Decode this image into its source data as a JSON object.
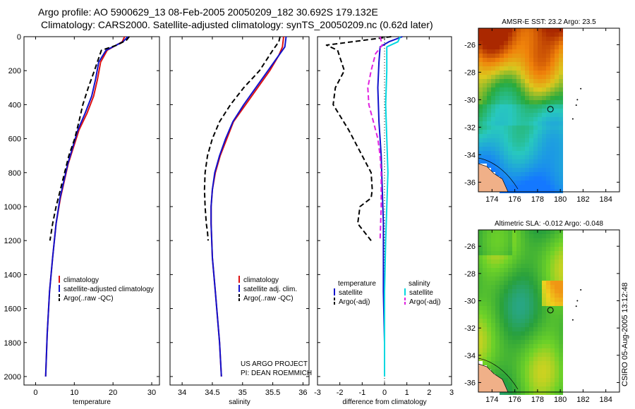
{
  "header": {
    "line1": "Argo profile: AO 5900629_13 08-Feb-2005 20050209_182 30.692S 179.132E",
    "line2": "Climatology: CARS2000. Satellite-adjusted climatology: synTS_20050209.nc (0.62d later)"
  },
  "side_label": "CSIRO 05-Aug-2005 13:12:48",
  "colors": {
    "climatology": "#dd1111",
    "satellite": "#1111cc",
    "argo": "#000000",
    "sal_sat": "#00d8e0",
    "sal_argo": "#e020e0"
  },
  "chart_data": [
    {
      "type": "line",
      "xlabel": "temperature",
      "xlim": [
        -3,
        32
      ],
      "ylim": [
        0,
        2050
      ],
      "xticks": [
        0,
        10,
        20,
        30
      ],
      "yticks": [
        0,
        200,
        400,
        600,
        800,
        1000,
        1200,
        1400,
        1600,
        1800,
        2000
      ],
      "legend": [
        "climatology",
        "satellite-adjusted climatology",
        "Argo(..raw -QC)"
      ],
      "series": [
        {
          "name": "climatology",
          "color": "#dd1111",
          "dash": "",
          "x": [
            23.0,
            22.4,
            18.5,
            16.8,
            16.0,
            15.0,
            13.3,
            11.2,
            9.8,
            8.4,
            7.4,
            6.4,
            5.3,
            4.4,
            3.6,
            3.0,
            2.6
          ],
          "y": [
            0,
            30,
            80,
            150,
            250,
            350,
            450,
            550,
            650,
            750,
            850,
            950,
            1100,
            1300,
            1500,
            1750,
            2000
          ]
        },
        {
          "name": "satellite",
          "color": "#1111cc",
          "dash": "",
          "x": [
            23.8,
            22.6,
            18.2,
            16.3,
            15.5,
            14.5,
            12.8,
            10.9,
            9.6,
            8.3,
            7.3,
            6.3,
            5.3,
            4.4,
            3.6,
            3.0,
            2.6
          ],
          "y": [
            0,
            30,
            80,
            150,
            250,
            350,
            450,
            550,
            650,
            750,
            850,
            950,
            1100,
            1300,
            1500,
            1750,
            2000
          ]
        },
        {
          "name": "argo",
          "color": "#000000",
          "dash": "7,4",
          "x": [
            24.2,
            23.5,
            21.0,
            17.0,
            15.2,
            13.6,
            12.2,
            11.2,
            10.1,
            8.6,
            7.5,
            6.4,
            5.3,
            4.4,
            3.7
          ],
          "y": [
            0,
            20,
            50,
            80,
            200,
            300,
            400,
            500,
            600,
            700,
            800,
            900,
            1000,
            1100,
            1200
          ]
        }
      ]
    },
    {
      "type": "line",
      "xlabel": "salinity",
      "xlim": [
        33.8,
        36.1
      ],
      "ylim": [
        0,
        2050
      ],
      "xticks": [
        34,
        34.5,
        35,
        35.5,
        36
      ],
      "legend": [
        "climatology",
        "satellite adj. clim.",
        "Argo(..raw -QC)"
      ],
      "annotation": [
        "US ARGO PROJECT",
        "PI: DEAN ROEMMICH"
      ],
      "series": [
        {
          "name": "climatology",
          "color": "#dd1111",
          "dash": "",
          "x": [
            35.68,
            35.66,
            35.6,
            35.45,
            35.25,
            35.05,
            34.85,
            34.74,
            34.63,
            34.55,
            34.5,
            34.48,
            34.48,
            34.5,
            34.55,
            34.62,
            34.65
          ],
          "y": [
            0,
            60,
            110,
            200,
            300,
            400,
            500,
            600,
            700,
            800,
            900,
            1000,
            1100,
            1300,
            1500,
            1800,
            2000
          ]
        },
        {
          "name": "satellite",
          "color": "#1111cc",
          "dash": "",
          "x": [
            35.72,
            35.7,
            35.6,
            35.42,
            35.22,
            35.02,
            34.84,
            34.72,
            34.62,
            34.54,
            34.5,
            34.48,
            34.48,
            34.5,
            34.55,
            34.62,
            34.65
          ],
          "y": [
            0,
            60,
            110,
            200,
            300,
            400,
            500,
            600,
            700,
            800,
            900,
            1000,
            1100,
            1300,
            1500,
            1800,
            2000
          ]
        },
        {
          "name": "argo",
          "color": "#000000",
          "dash": "7,4",
          "x": [
            35.62,
            35.6,
            35.5,
            35.28,
            35.02,
            34.8,
            34.62,
            34.5,
            34.42,
            34.38,
            34.37,
            34.38,
            34.4,
            34.42,
            34.43
          ],
          "y": [
            0,
            30,
            80,
            200,
            300,
            400,
            500,
            600,
            700,
            800,
            900,
            1000,
            1100,
            1150,
            1200
          ]
        }
      ]
    },
    {
      "type": "line",
      "xlabel": "difference from climatology",
      "xlim": [
        -3,
        3
      ],
      "ylim": [
        0,
        2050
      ],
      "xticks": [
        -3,
        -2,
        -1,
        0,
        1,
        2,
        3
      ],
      "legend": [
        [
          "temperature",
          "satellite",
          "Argo(-adj)"
        ],
        [
          "salinity",
          "satellite",
          "Argo(-adj)"
        ]
      ],
      "series": [
        {
          "name": "temperature satellite",
          "color": "#1111cc",
          "dash": "",
          "x": [
            0.8,
            0.2,
            -0.2,
            -0.25,
            -0.3,
            -0.25,
            -0.15,
            -0.1,
            -0.05,
            -0.05,
            -0.05,
            0,
            0
          ],
          "y": [
            0,
            30,
            60,
            150,
            300,
            500,
            700,
            900,
            1100,
            1300,
            1500,
            1800,
            2000
          ]
        },
        {
          "name": "temperature argo",
          "color": "#000000",
          "dash": "7,4",
          "x": [
            0.3,
            -2.6,
            -2.1,
            -1.8,
            -2.2,
            -2.3,
            -1.6,
            -1.0,
            -0.6,
            -0.55,
            -0.6,
            -1.1,
            -1.2,
            -0.6
          ],
          "y": [
            0,
            50,
            80,
            200,
            300,
            400,
            550,
            700,
            800,
            900,
            950,
            1000,
            1100,
            1200
          ]
        },
        {
          "name": "salinity satellite",
          "color": "#00d8e0",
          "dash": "",
          "x": [
            0.7,
            0.6,
            0.1,
            0.1,
            0.05,
            0.1,
            0.15,
            0.1,
            0.05,
            0,
            0,
            0
          ],
          "y": [
            0,
            30,
            60,
            200,
            400,
            600,
            800,
            1000,
            1200,
            1500,
            1800,
            2000
          ]
        },
        {
          "name": "salinity argo",
          "color": "#e020e0",
          "dash": "7,4",
          "x": [
            -0.2,
            -0.1,
            -0.4,
            -0.6,
            -0.75,
            -0.7,
            -0.5,
            -0.3,
            -0.2,
            -0.15,
            -0.15,
            -0.2
          ],
          "y": [
            0,
            50,
            100,
            200,
            300,
            400,
            500,
            600,
            700,
            800,
            1000,
            1200
          ]
        }
      ]
    }
  ],
  "maps": [
    {
      "title": "AMSR-E SST: 23.2 Argo: 23.5",
      "kind": "sst",
      "xticks": [
        174,
        176,
        178,
        180,
        182,
        184
      ],
      "yticks": [
        -26,
        -28,
        -30,
        -32,
        -34,
        -36
      ]
    },
    {
      "title": "Altimetric SLA: -0.012 Argo: -0.048",
      "kind": "sla",
      "xticks": [
        174,
        176,
        178,
        180,
        182,
        184
      ],
      "yticks": [
        -26,
        -28,
        -30,
        -32,
        -34,
        -36
      ]
    }
  ]
}
